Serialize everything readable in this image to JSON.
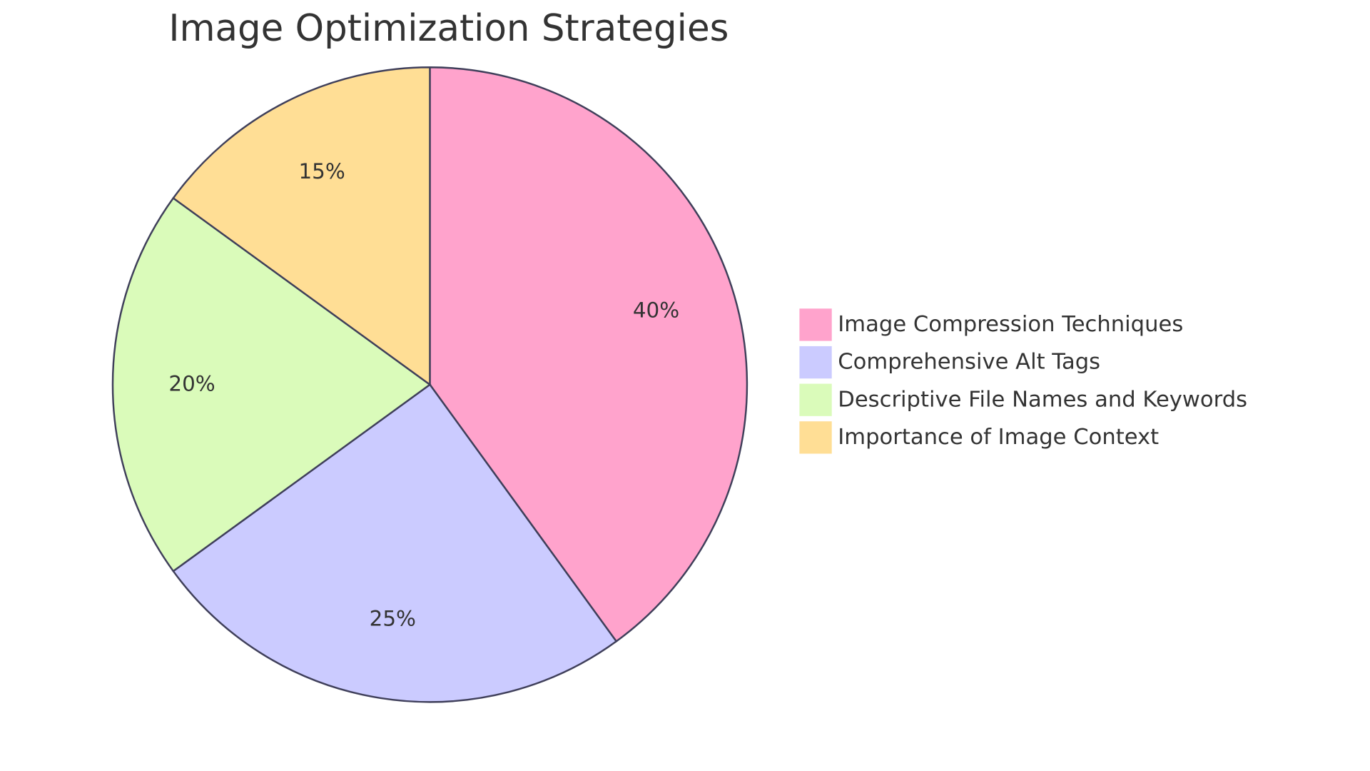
{
  "chart_data": {
    "type": "pie",
    "title": "Image Optimization Strategies",
    "categories": [
      "Image Compression Techniques",
      "Comprehensive Alt Tags",
      "Descriptive File Names and Keywords",
      "Importance of Image Context"
    ],
    "values": [
      40,
      25,
      20,
      15
    ],
    "value_labels": [
      "40%",
      "25%",
      "20%",
      "15%"
    ],
    "colors": [
      "#ffa3cc",
      "#cbcbff",
      "#dafbba",
      "#ffde95"
    ],
    "legend": "right"
  }
}
